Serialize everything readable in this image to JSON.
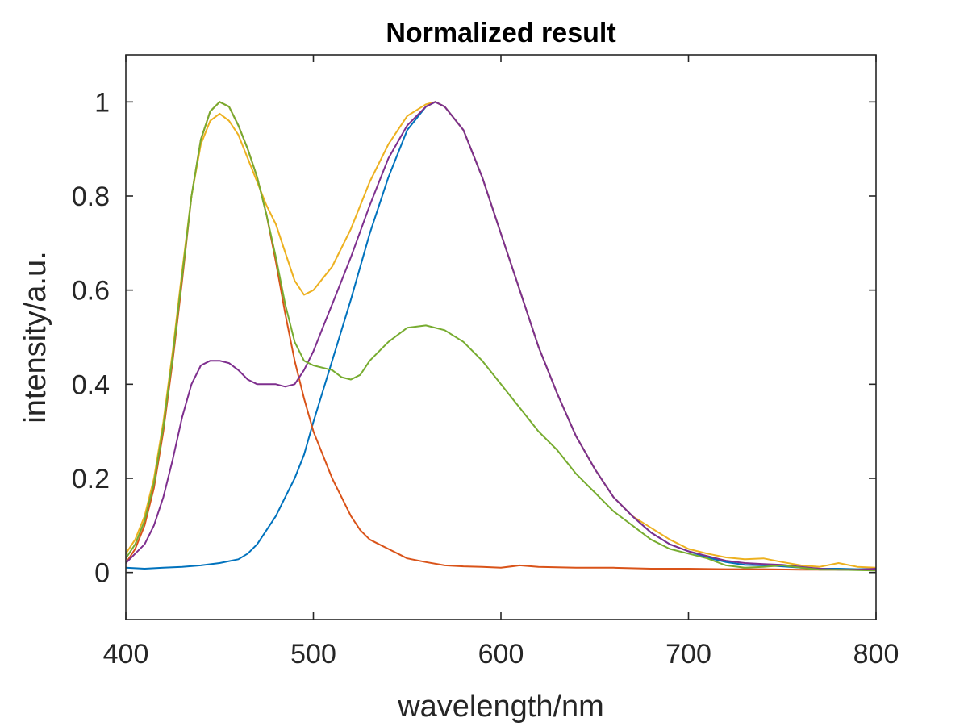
{
  "chart_data": {
    "type": "line",
    "title": "Normalized result",
    "xlabel": "wavelength/nm",
    "ylabel": "intensity/a.u.",
    "xlim": [
      400,
      800
    ],
    "ylim": [
      -0.1,
      1.1
    ],
    "xticks": [
      400,
      500,
      600,
      700,
      800
    ],
    "xtick_labels": [
      "400",
      "500",
      "600",
      "700",
      "800"
    ],
    "yticks": [
      0,
      0.2,
      0.4,
      0.6,
      0.8,
      1
    ],
    "ytick_labels": [
      "0",
      "0.2",
      "0.4",
      "0.6",
      "0.8",
      "1"
    ],
    "grid": false,
    "box": true,
    "series": [
      {
        "color": "#0072BD",
        "points": [
          [
            400,
            0.01
          ],
          [
            410,
            0.008
          ],
          [
            420,
            0.01
          ],
          [
            430,
            0.012
          ],
          [
            440,
            0.015
          ],
          [
            450,
            0.02
          ],
          [
            460,
            0.028
          ],
          [
            465,
            0.04
          ],
          [
            470,
            0.06
          ],
          [
            475,
            0.09
          ],
          [
            480,
            0.12
          ],
          [
            485,
            0.16
          ],
          [
            490,
            0.2
          ],
          [
            495,
            0.25
          ],
          [
            500,
            0.32
          ],
          [
            510,
            0.45
          ],
          [
            520,
            0.58
          ],
          [
            530,
            0.72
          ],
          [
            540,
            0.84
          ],
          [
            550,
            0.94
          ],
          [
            560,
            0.99
          ],
          [
            565,
            1.0
          ],
          [
            570,
            0.99
          ],
          [
            580,
            0.94
          ],
          [
            590,
            0.84
          ],
          [
            600,
            0.72
          ],
          [
            610,
            0.6
          ],
          [
            620,
            0.48
          ],
          [
            630,
            0.38
          ],
          [
            640,
            0.29
          ],
          [
            650,
            0.22
          ],
          [
            660,
            0.16
          ],
          [
            670,
            0.12
          ],
          [
            680,
            0.085
          ],
          [
            690,
            0.06
          ],
          [
            700,
            0.045
          ],
          [
            710,
            0.032
          ],
          [
            720,
            0.022
          ],
          [
            730,
            0.016
          ],
          [
            740,
            0.015
          ],
          [
            750,
            0.013
          ],
          [
            760,
            0.01
          ],
          [
            770,
            0.008
          ],
          [
            780,
            0.008
          ],
          [
            790,
            0.007
          ],
          [
            800,
            0.008
          ]
        ]
      },
      {
        "color": "#D95319",
        "points": [
          [
            400,
            0.02
          ],
          [
            405,
            0.05
          ],
          [
            410,
            0.1
          ],
          [
            415,
            0.18
          ],
          [
            420,
            0.3
          ],
          [
            425,
            0.45
          ],
          [
            430,
            0.62
          ],
          [
            435,
            0.8
          ],
          [
            440,
            0.92
          ],
          [
            445,
            0.98
          ],
          [
            450,
            1.0
          ],
          [
            455,
            0.99
          ],
          [
            460,
            0.95
          ],
          [
            465,
            0.9
          ],
          [
            470,
            0.84
          ],
          [
            475,
            0.76
          ],
          [
            480,
            0.66
          ],
          [
            485,
            0.55
          ],
          [
            490,
            0.45
          ],
          [
            495,
            0.37
          ],
          [
            500,
            0.3
          ],
          [
            505,
            0.25
          ],
          [
            510,
            0.2
          ],
          [
            515,
            0.16
          ],
          [
            520,
            0.12
          ],
          [
            525,
            0.09
          ],
          [
            530,
            0.07
          ],
          [
            535,
            0.06
          ],
          [
            540,
            0.05
          ],
          [
            545,
            0.04
          ],
          [
            550,
            0.03
          ],
          [
            560,
            0.022
          ],
          [
            570,
            0.015
          ],
          [
            580,
            0.013
          ],
          [
            590,
            0.012
          ],
          [
            600,
            0.01
          ],
          [
            610,
            0.015
          ],
          [
            620,
            0.012
          ],
          [
            640,
            0.01
          ],
          [
            660,
            0.01
          ],
          [
            680,
            0.008
          ],
          [
            700,
            0.008
          ],
          [
            720,
            0.007
          ],
          [
            740,
            0.007
          ],
          [
            760,
            0.006
          ],
          [
            780,
            0.006
          ],
          [
            800,
            0.006
          ]
        ]
      },
      {
        "color": "#EDB120",
        "points": [
          [
            400,
            0.04
          ],
          [
            405,
            0.07
          ],
          [
            410,
            0.12
          ],
          [
            415,
            0.2
          ],
          [
            420,
            0.32
          ],
          [
            425,
            0.47
          ],
          [
            430,
            0.64
          ],
          [
            435,
            0.8
          ],
          [
            440,
            0.91
          ],
          [
            445,
            0.96
          ],
          [
            450,
            0.975
          ],
          [
            455,
            0.96
          ],
          [
            460,
            0.93
          ],
          [
            465,
            0.88
          ],
          [
            470,
            0.83
          ],
          [
            475,
            0.78
          ],
          [
            480,
            0.74
          ],
          [
            485,
            0.68
          ],
          [
            490,
            0.62
          ],
          [
            495,
            0.59
          ],
          [
            500,
            0.6
          ],
          [
            510,
            0.65
          ],
          [
            520,
            0.73
          ],
          [
            530,
            0.83
          ],
          [
            540,
            0.91
          ],
          [
            550,
            0.97
          ],
          [
            560,
            0.995
          ],
          [
            565,
            1.0
          ],
          [
            570,
            0.99
          ],
          [
            580,
            0.94
          ],
          [
            590,
            0.84
          ],
          [
            600,
            0.72
          ],
          [
            610,
            0.6
          ],
          [
            620,
            0.48
          ],
          [
            630,
            0.38
          ],
          [
            640,
            0.29
          ],
          [
            650,
            0.22
          ],
          [
            660,
            0.16
          ],
          [
            670,
            0.12
          ],
          [
            680,
            0.095
          ],
          [
            690,
            0.07
          ],
          [
            700,
            0.05
          ],
          [
            710,
            0.04
          ],
          [
            720,
            0.032
          ],
          [
            730,
            0.028
          ],
          [
            740,
            0.03
          ],
          [
            750,
            0.022
          ],
          [
            760,
            0.015
          ],
          [
            770,
            0.012
          ],
          [
            780,
            0.02
          ],
          [
            790,
            0.012
          ],
          [
            800,
            0.01
          ]
        ]
      },
      {
        "color": "#7E2F8E",
        "points": [
          [
            400,
            0.02
          ],
          [
            405,
            0.04
          ],
          [
            410,
            0.06
          ],
          [
            415,
            0.1
          ],
          [
            420,
            0.16
          ],
          [
            425,
            0.24
          ],
          [
            430,
            0.33
          ],
          [
            435,
            0.4
          ],
          [
            440,
            0.44
          ],
          [
            445,
            0.45
          ],
          [
            450,
            0.45
          ],
          [
            455,
            0.445
          ],
          [
            460,
            0.43
          ],
          [
            465,
            0.41
          ],
          [
            470,
            0.4
          ],
          [
            475,
            0.4
          ],
          [
            480,
            0.4
          ],
          [
            485,
            0.395
          ],
          [
            490,
            0.4
          ],
          [
            495,
            0.43
          ],
          [
            500,
            0.47
          ],
          [
            505,
            0.52
          ],
          [
            510,
            0.57
          ],
          [
            520,
            0.67
          ],
          [
            530,
            0.78
          ],
          [
            540,
            0.88
          ],
          [
            550,
            0.95
          ],
          [
            560,
            0.99
          ],
          [
            565,
            1.0
          ],
          [
            570,
            0.99
          ],
          [
            580,
            0.94
          ],
          [
            590,
            0.84
          ],
          [
            600,
            0.72
          ],
          [
            610,
            0.6
          ],
          [
            620,
            0.48
          ],
          [
            630,
            0.38
          ],
          [
            640,
            0.29
          ],
          [
            650,
            0.22
          ],
          [
            660,
            0.16
          ],
          [
            670,
            0.12
          ],
          [
            680,
            0.085
          ],
          [
            690,
            0.06
          ],
          [
            700,
            0.045
          ],
          [
            710,
            0.035
          ],
          [
            720,
            0.025
          ],
          [
            730,
            0.02
          ],
          [
            740,
            0.018
          ],
          [
            750,
            0.016
          ],
          [
            760,
            0.012
          ],
          [
            770,
            0.008
          ],
          [
            780,
            0.006
          ],
          [
            790,
            0.006
          ],
          [
            800,
            0.008
          ]
        ]
      },
      {
        "color": "#77AC30",
        "points": [
          [
            400,
            0.03
          ],
          [
            405,
            0.06
          ],
          [
            410,
            0.11
          ],
          [
            415,
            0.19
          ],
          [
            420,
            0.31
          ],
          [
            425,
            0.46
          ],
          [
            430,
            0.63
          ],
          [
            435,
            0.8
          ],
          [
            440,
            0.92
          ],
          [
            445,
            0.98
          ],
          [
            450,
            1.0
          ],
          [
            455,
            0.99
          ],
          [
            460,
            0.95
          ],
          [
            465,
            0.9
          ],
          [
            470,
            0.84
          ],
          [
            475,
            0.76
          ],
          [
            480,
            0.67
          ],
          [
            485,
            0.57
          ],
          [
            490,
            0.49
          ],
          [
            495,
            0.45
          ],
          [
            500,
            0.44
          ],
          [
            510,
            0.43
          ],
          [
            515,
            0.415
          ],
          [
            520,
            0.41
          ],
          [
            525,
            0.42
          ],
          [
            530,
            0.45
          ],
          [
            540,
            0.49
          ],
          [
            550,
            0.52
          ],
          [
            560,
            0.525
          ],
          [
            570,
            0.515
          ],
          [
            580,
            0.49
          ],
          [
            590,
            0.45
          ],
          [
            600,
            0.4
          ],
          [
            610,
            0.35
          ],
          [
            620,
            0.3
          ],
          [
            630,
            0.26
          ],
          [
            640,
            0.21
          ],
          [
            650,
            0.17
          ],
          [
            660,
            0.13
          ],
          [
            670,
            0.1
          ],
          [
            680,
            0.07
          ],
          [
            690,
            0.05
          ],
          [
            700,
            0.04
          ],
          [
            710,
            0.03
          ],
          [
            720,
            0.015
          ],
          [
            730,
            0.01
          ],
          [
            740,
            0.012
          ],
          [
            750,
            0.015
          ],
          [
            760,
            0.01
          ],
          [
            770,
            0.006
          ],
          [
            780,
            0.006
          ],
          [
            790,
            0.005
          ],
          [
            800,
            0.004
          ]
        ]
      }
    ]
  }
}
